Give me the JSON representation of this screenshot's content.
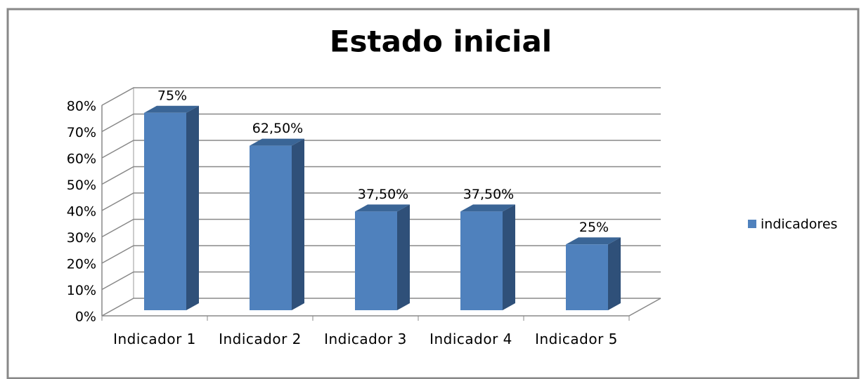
{
  "chart_data": {
    "type": "bar3d",
    "title": "Estado inicial",
    "categories": [
      "Indicador 1",
      "Indicador 2",
      "Indicador 3",
      "Indicador 4",
      "Indicador 5"
    ],
    "series": [
      {
        "name": "indicadores",
        "color": "#4f81bd",
        "values": [
          75,
          62.5,
          37.5,
          37.5,
          25
        ],
        "value_labels": [
          "75%",
          "62,50%",
          "37,50%",
          "37,50%",
          "25%"
        ]
      }
    ],
    "ylim": [
      0,
      80
    ],
    "yticks": [
      {
        "value": 0,
        "label": "0%"
      },
      {
        "value": 10,
        "label": "10%"
      },
      {
        "value": 20,
        "label": "20%"
      },
      {
        "value": 30,
        "label": "30%"
      },
      {
        "value": 40,
        "label": "40%"
      },
      {
        "value": 50,
        "label": "50%"
      },
      {
        "value": 60,
        "label": "60%"
      },
      {
        "value": 70,
        "label": "70%"
      },
      {
        "value": 80,
        "label": "80%"
      }
    ],
    "grid": true,
    "legend": "right"
  }
}
